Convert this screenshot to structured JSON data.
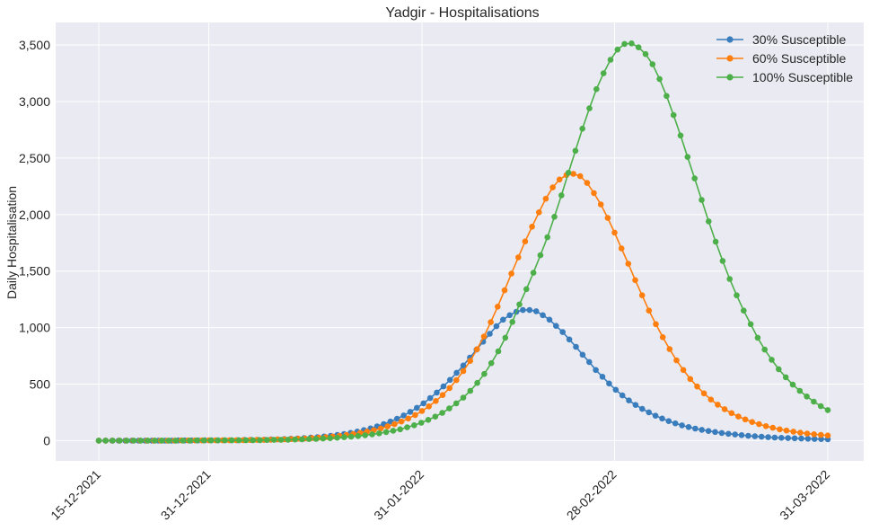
{
  "chart_data": {
    "type": "line",
    "title": "Yadgir - Hospitalisations",
    "xlabel": "",
    "ylabel": "Daily Hospitalisation",
    "x_start": "15-12-2021",
    "x_end": "31-03-2022",
    "x_ticks": [
      "15-12-2021",
      "31-12-2021",
      "31-01-2022",
      "28-02-2022",
      "31-03-2022"
    ],
    "y_ticks": [
      "0",
      "500",
      "1,000",
      "1,500",
      "2,000",
      "2,500",
      "3,000",
      "3,500"
    ],
    "ylim": [
      -180,
      3700
    ],
    "grid": true,
    "legend_position": "top-right",
    "series": [
      {
        "name": "30% Susceptible",
        "color": "#3a7dbd",
        "peak_date": "22-02-2022",
        "values": [
          0,
          0,
          0,
          0,
          0,
          0,
          0,
          0,
          0,
          0,
          0,
          0,
          1,
          1,
          1,
          1,
          2,
          2,
          2,
          3,
          3,
          4,
          5,
          6,
          7,
          8,
          10,
          11,
          13,
          16,
          18,
          22,
          26,
          30,
          36,
          42,
          50,
          58,
          68,
          80,
          93,
          108,
          126,
          146,
          168,
          193,
          222,
          254,
          290,
          330,
          376,
          425,
          479,
          537,
          600,
          664,
          734,
          805,
          875,
          945,
          1012,
          1070,
          1110,
          1140,
          1155,
          1155,
          1145,
          1110,
          1070,
          1015,
          960,
          895,
          830,
          760,
          695,
          625,
          565,
          505,
          450,
          400,
          355,
          315,
          280,
          250,
          220,
          195,
          172,
          152,
          135,
          120,
          106,
          95,
          85,
          76,
          67,
          60,
          54,
          48,
          43,
          38,
          34,
          30,
          27,
          24,
          22,
          20,
          18,
          16,
          14,
          13,
          12
        ]
      },
      {
        "name": "60% Susceptible",
        "color": "#ff7f0e",
        "peak_date": "27-02-2022",
        "values": [
          0,
          0,
          0,
          0,
          0,
          0,
          0,
          0,
          0,
          0,
          0,
          0,
          1,
          1,
          1,
          1,
          2,
          2,
          2,
          3,
          3,
          4,
          5,
          6,
          7,
          8,
          10,
          11,
          13,
          16,
          18,
          22,
          26,
          30,
          36,
          42,
          50,
          58,
          68,
          80,
          92,
          107,
          125,
          145,
          168,
          195,
          226,
          262,
          303,
          350,
          403,
          465,
          535,
          615,
          705,
          808,
          920,
          1048,
          1185,
          1330,
          1478,
          1622,
          1762,
          1893,
          2020,
          2140,
          2240,
          2310,
          2350,
          2360,
          2340,
          2280,
          2190,
          2090,
          1970,
          1840,
          1700,
          1565,
          1420,
          1285,
          1150,
          1030,
          915,
          810,
          710,
          625,
          545,
          478,
          418,
          363,
          318,
          278,
          243,
          213,
          187,
          164,
          145,
          128,
          113,
          100,
          89,
          79,
          70,
          62,
          56,
          50,
          45
        ]
      },
      {
        "name": "100% Susceptible",
        "color": "#4daf4a",
        "peak_date": "04-03-2022",
        "values": [
          0,
          0,
          0,
          0,
          0,
          0,
          0,
          0,
          0,
          0,
          0,
          0,
          0,
          0,
          1,
          1,
          1,
          1,
          2,
          2,
          2,
          3,
          3,
          4,
          5,
          6,
          7,
          8,
          9,
          11,
          13,
          15,
          18,
          21,
          25,
          30,
          35,
          40,
          47,
          55,
          64,
          75,
          87,
          100,
          117,
          136,
          158,
          183,
          212,
          245,
          284,
          330,
          380,
          440,
          510,
          590,
          685,
          790,
          910,
          1050,
          1205,
          1340,
          1485,
          1640,
          1800,
          1980,
          2170,
          2370,
          2565,
          2760,
          2940,
          3110,
          3250,
          3370,
          3460,
          3510,
          3515,
          3480,
          3420,
          3330,
          3200,
          3050,
          2880,
          2700,
          2510,
          2320,
          2130,
          1940,
          1760,
          1590,
          1430,
          1285,
          1150,
          1030,
          910,
          805,
          715,
          632,
          560,
          495,
          440,
          390,
          345,
          305,
          270
        ]
      }
    ]
  }
}
